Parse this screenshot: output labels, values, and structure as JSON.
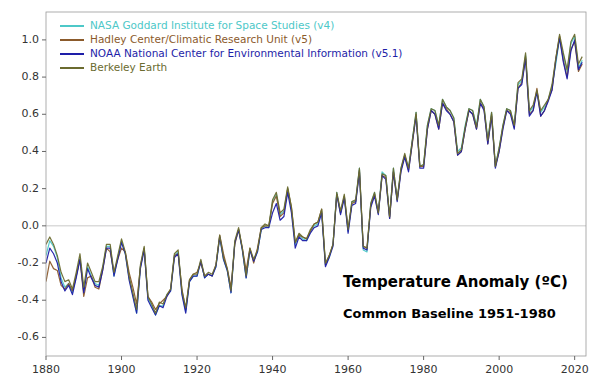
{
  "chart_data": {
    "type": "line",
    "title": "Temperature Anomaly (ºC)",
    "subtitle": "Common Baseline 1951-1980",
    "x": [
      1880,
      1881,
      1882,
      1883,
      1884,
      1885,
      1886,
      1887,
      1888,
      1889,
      1890,
      1891,
      1892,
      1893,
      1894,
      1895,
      1896,
      1897,
      1898,
      1899,
      1900,
      1901,
      1902,
      1903,
      1904,
      1905,
      1906,
      1907,
      1908,
      1909,
      1910,
      1911,
      1912,
      1913,
      1914,
      1915,
      1916,
      1917,
      1918,
      1919,
      1920,
      1921,
      1922,
      1923,
      1924,
      1925,
      1926,
      1927,
      1928,
      1929,
      1930,
      1931,
      1932,
      1933,
      1934,
      1935,
      1936,
      1937,
      1938,
      1939,
      1940,
      1941,
      1942,
      1943,
      1944,
      1945,
      1946,
      1947,
      1948,
      1949,
      1950,
      1951,
      1952,
      1953,
      1954,
      1955,
      1956,
      1957,
      1958,
      1959,
      1960,
      1961,
      1962,
      1963,
      1964,
      1965,
      1966,
      1967,
      1968,
      1969,
      1970,
      1971,
      1972,
      1973,
      1974,
      1975,
      1976,
      1977,
      1978,
      1979,
      1980,
      1981,
      1982,
      1983,
      1984,
      1985,
      1986,
      1987,
      1988,
      1989,
      1990,
      1991,
      1992,
      1993,
      1994,
      1995,
      1996,
      1997,
      1998,
      1999,
      2000,
      2001,
      2002,
      2003,
      2004,
      2005,
      2006,
      2007,
      2008,
      2009,
      2010,
      2011,
      2012,
      2013,
      2014,
      2015,
      2016,
      2017,
      2018,
      2019,
      2020,
      2021,
      2022
    ],
    "series": [
      {
        "name": "NASA Goddard Institute for Space Studies (v4)",
        "color": "#4DC8C8",
        "values": [
          -0.16,
          -0.08,
          -0.11,
          -0.17,
          -0.28,
          -0.33,
          -0.31,
          -0.36,
          -0.27,
          -0.17,
          -0.35,
          -0.22,
          -0.27,
          -0.31,
          -0.32,
          -0.23,
          -0.11,
          -0.11,
          -0.27,
          -0.17,
          -0.08,
          -0.15,
          -0.28,
          -0.37,
          -0.47,
          -0.22,
          -0.12,
          -0.39,
          -0.43,
          -0.48,
          -0.43,
          -0.43,
          -0.37,
          -0.35,
          -0.16,
          -0.14,
          -0.36,
          -0.46,
          -0.3,
          -0.27,
          -0.27,
          -0.19,
          -0.28,
          -0.26,
          -0.27,
          -0.22,
          -0.06,
          -0.18,
          -0.24,
          -0.36,
          -0.09,
          -0.02,
          -0.13,
          -0.28,
          -0.13,
          -0.19,
          -0.14,
          -0.02,
          -0.0,
          -0.01,
          0.13,
          0.17,
          0.06,
          0.08,
          0.2,
          0.09,
          -0.1,
          -0.05,
          -0.07,
          -0.08,
          -0.03,
          0.0,
          0.01,
          0.08,
          -0.21,
          -0.17,
          -0.1,
          0.18,
          0.07,
          0.16,
          -0.03,
          0.13,
          0.13,
          0.31,
          -0.13,
          -0.14,
          0.12,
          0.18,
          0.07,
          0.29,
          0.27,
          0.05,
          0.31,
          0.14,
          0.31,
          0.38,
          0.31,
          0.46,
          0.61,
          0.32,
          0.33,
          0.54,
          0.63,
          0.62,
          0.54,
          0.68,
          0.64,
          0.62,
          0.58,
          0.4,
          0.42,
          0.54,
          0.63,
          0.62,
          0.54,
          0.68,
          0.64,
          0.46,
          0.61,
          0.32,
          0.42,
          0.54,
          0.63,
          0.62,
          0.54,
          0.76,
          0.78,
          0.92,
          0.61,
          0.64,
          0.72,
          0.61,
          0.64,
          0.68,
          0.75,
          0.87,
          1.01,
          0.92,
          0.83,
          0.98,
          1.02,
          0.85,
          0.89
        ]
      },
      {
        "name": "Hadley Center/Climatic Research Unit (v5)",
        "color": "#8B5A2B",
        "values": [
          -0.3,
          -0.19,
          -0.23,
          -0.24,
          -0.32,
          -0.34,
          -0.31,
          -0.35,
          -0.27,
          -0.18,
          -0.38,
          -0.28,
          -0.27,
          -0.33,
          -0.34,
          -0.24,
          -0.12,
          -0.14,
          -0.25,
          -0.18,
          -0.12,
          -0.14,
          -0.25,
          -0.33,
          -0.42,
          -0.22,
          -0.12,
          -0.38,
          -0.41,
          -0.45,
          -0.42,
          -0.4,
          -0.38,
          -0.34,
          -0.16,
          -0.15,
          -0.34,
          -0.45,
          -0.29,
          -0.26,
          -0.25,
          -0.2,
          -0.27,
          -0.26,
          -0.27,
          -0.21,
          -0.05,
          -0.15,
          -0.23,
          -0.33,
          -0.1,
          -0.02,
          -0.12,
          -0.24,
          -0.12,
          -0.2,
          -0.12,
          -0.01,
          0.0,
          0.0,
          0.12,
          0.16,
          0.05,
          0.07,
          0.2,
          0.1,
          -0.09,
          -0.05,
          -0.06,
          -0.07,
          -0.03,
          0.01,
          0.02,
          0.09,
          -0.21,
          -0.16,
          -0.1,
          0.17,
          0.07,
          0.16,
          -0.02,
          0.12,
          0.13,
          0.3,
          -0.11,
          -0.12,
          0.11,
          0.17,
          0.07,
          0.27,
          0.26,
          0.04,
          0.29,
          0.14,
          0.3,
          0.38,
          0.3,
          0.44,
          0.6,
          0.32,
          0.32,
          0.52,
          0.62,
          0.6,
          0.52,
          0.66,
          0.63,
          0.6,
          0.56,
          0.38,
          0.4,
          0.52,
          0.62,
          0.6,
          0.52,
          0.66,
          0.63,
          0.44,
          0.6,
          0.32,
          0.4,
          0.53,
          0.62,
          0.61,
          0.53,
          0.74,
          0.77,
          0.91,
          0.6,
          0.62,
          0.74,
          0.59,
          0.62,
          0.68,
          0.73,
          0.9,
          1.02,
          0.89,
          0.8,
          0.95,
          0.99,
          0.83,
          0.87
        ]
      },
      {
        "name": "NOAA National Center for Environmental Information (v5.1)",
        "color": "#1E1EA8",
        "values": [
          -0.2,
          -0.12,
          -0.15,
          -0.2,
          -0.3,
          -0.35,
          -0.32,
          -0.37,
          -0.28,
          -0.18,
          -0.36,
          -0.23,
          -0.28,
          -0.32,
          -0.33,
          -0.24,
          -0.12,
          -0.12,
          -0.27,
          -0.18,
          -0.09,
          -0.15,
          -0.29,
          -0.38,
          -0.47,
          -0.23,
          -0.13,
          -0.4,
          -0.44,
          -0.48,
          -0.43,
          -0.44,
          -0.38,
          -0.35,
          -0.17,
          -0.15,
          -0.37,
          -0.47,
          -0.3,
          -0.27,
          -0.27,
          -0.19,
          -0.28,
          -0.26,
          -0.27,
          -0.22,
          -0.06,
          -0.18,
          -0.24,
          -0.36,
          -0.09,
          -0.02,
          -0.13,
          -0.28,
          -0.13,
          -0.19,
          -0.14,
          -0.02,
          -0.01,
          -0.01,
          0.07,
          0.12,
          0.03,
          0.05,
          0.18,
          0.07,
          -0.12,
          -0.06,
          -0.08,
          -0.08,
          -0.04,
          -0.01,
          0.0,
          0.07,
          -0.22,
          -0.17,
          -0.11,
          0.17,
          0.06,
          0.15,
          -0.04,
          0.11,
          0.12,
          0.29,
          -0.12,
          -0.13,
          0.1,
          0.16,
          0.06,
          0.27,
          0.25,
          0.04,
          0.29,
          0.13,
          0.29,
          0.37,
          0.29,
          0.45,
          0.59,
          0.31,
          0.31,
          0.52,
          0.62,
          0.6,
          0.52,
          0.66,
          0.62,
          0.6,
          0.56,
          0.38,
          0.4,
          0.52,
          0.62,
          0.6,
          0.52,
          0.66,
          0.62,
          0.44,
          0.59,
          0.31,
          0.4,
          0.52,
          0.62,
          0.6,
          0.52,
          0.74,
          0.76,
          0.9,
          0.59,
          0.62,
          0.72,
          0.59,
          0.62,
          0.67,
          0.73,
          0.89,
          1.01,
          0.88,
          0.79,
          0.94,
          1.0,
          0.84,
          0.88
        ]
      },
      {
        "name": "Berkeley Earth",
        "color": "#6B6B2F",
        "values": [
          -0.1,
          -0.06,
          -0.1,
          -0.16,
          -0.25,
          -0.3,
          -0.29,
          -0.34,
          -0.25,
          -0.15,
          -0.33,
          -0.2,
          -0.25,
          -0.3,
          -0.3,
          -0.22,
          -0.1,
          -0.1,
          -0.25,
          -0.16,
          -0.07,
          -0.14,
          -0.27,
          -0.36,
          -0.45,
          -0.21,
          -0.11,
          -0.38,
          -0.42,
          -0.47,
          -0.41,
          -0.42,
          -0.37,
          -0.34,
          -0.15,
          -0.13,
          -0.35,
          -0.44,
          -0.29,
          -0.26,
          -0.26,
          -0.18,
          -0.27,
          -0.25,
          -0.26,
          -0.21,
          -0.05,
          -0.17,
          -0.23,
          -0.35,
          -0.08,
          -0.01,
          -0.12,
          -0.27,
          -0.12,
          -0.18,
          -0.13,
          -0.01,
          0.01,
          0.0,
          0.14,
          0.18,
          0.07,
          0.09,
          0.21,
          0.1,
          -0.09,
          -0.04,
          -0.06,
          -0.07,
          -0.02,
          0.01,
          0.02,
          0.09,
          -0.2,
          -0.16,
          -0.1,
          0.18,
          0.08,
          0.17,
          -0.02,
          0.13,
          0.14,
          0.31,
          -0.11,
          -0.12,
          0.12,
          0.18,
          0.07,
          0.28,
          0.27,
          0.05,
          0.31,
          0.14,
          0.31,
          0.39,
          0.31,
          0.46,
          0.61,
          0.32,
          0.33,
          0.54,
          0.63,
          0.62,
          0.54,
          0.68,
          0.64,
          0.62,
          0.58,
          0.39,
          0.41,
          0.53,
          0.63,
          0.62,
          0.53,
          0.68,
          0.64,
          0.46,
          0.61,
          0.32,
          0.42,
          0.54,
          0.63,
          0.62,
          0.54,
          0.77,
          0.79,
          0.93,
          0.62,
          0.65,
          0.73,
          0.62,
          0.65,
          0.68,
          0.76,
          0.9,
          1.03,
          0.93,
          0.84,
          0.99,
          1.03,
          0.87,
          0.91
        ]
      }
    ],
    "xlim": [
      1880,
      2023
    ],
    "ylim": [
      -0.7,
      1.15
    ],
    "xticks": [
      1880,
      1900,
      1920,
      1940,
      1960,
      1980,
      2000,
      2020
    ],
    "yticks": [
      -0.6,
      -0.4,
      -0.2,
      {
        "value": 0,
        "label": "0.0"
      },
      0.2,
      0.4,
      0.6,
      0.8,
      {
        "value": 1,
        "label": "1.0"
      }
    ],
    "grid": false,
    "legend": "upper-left"
  }
}
